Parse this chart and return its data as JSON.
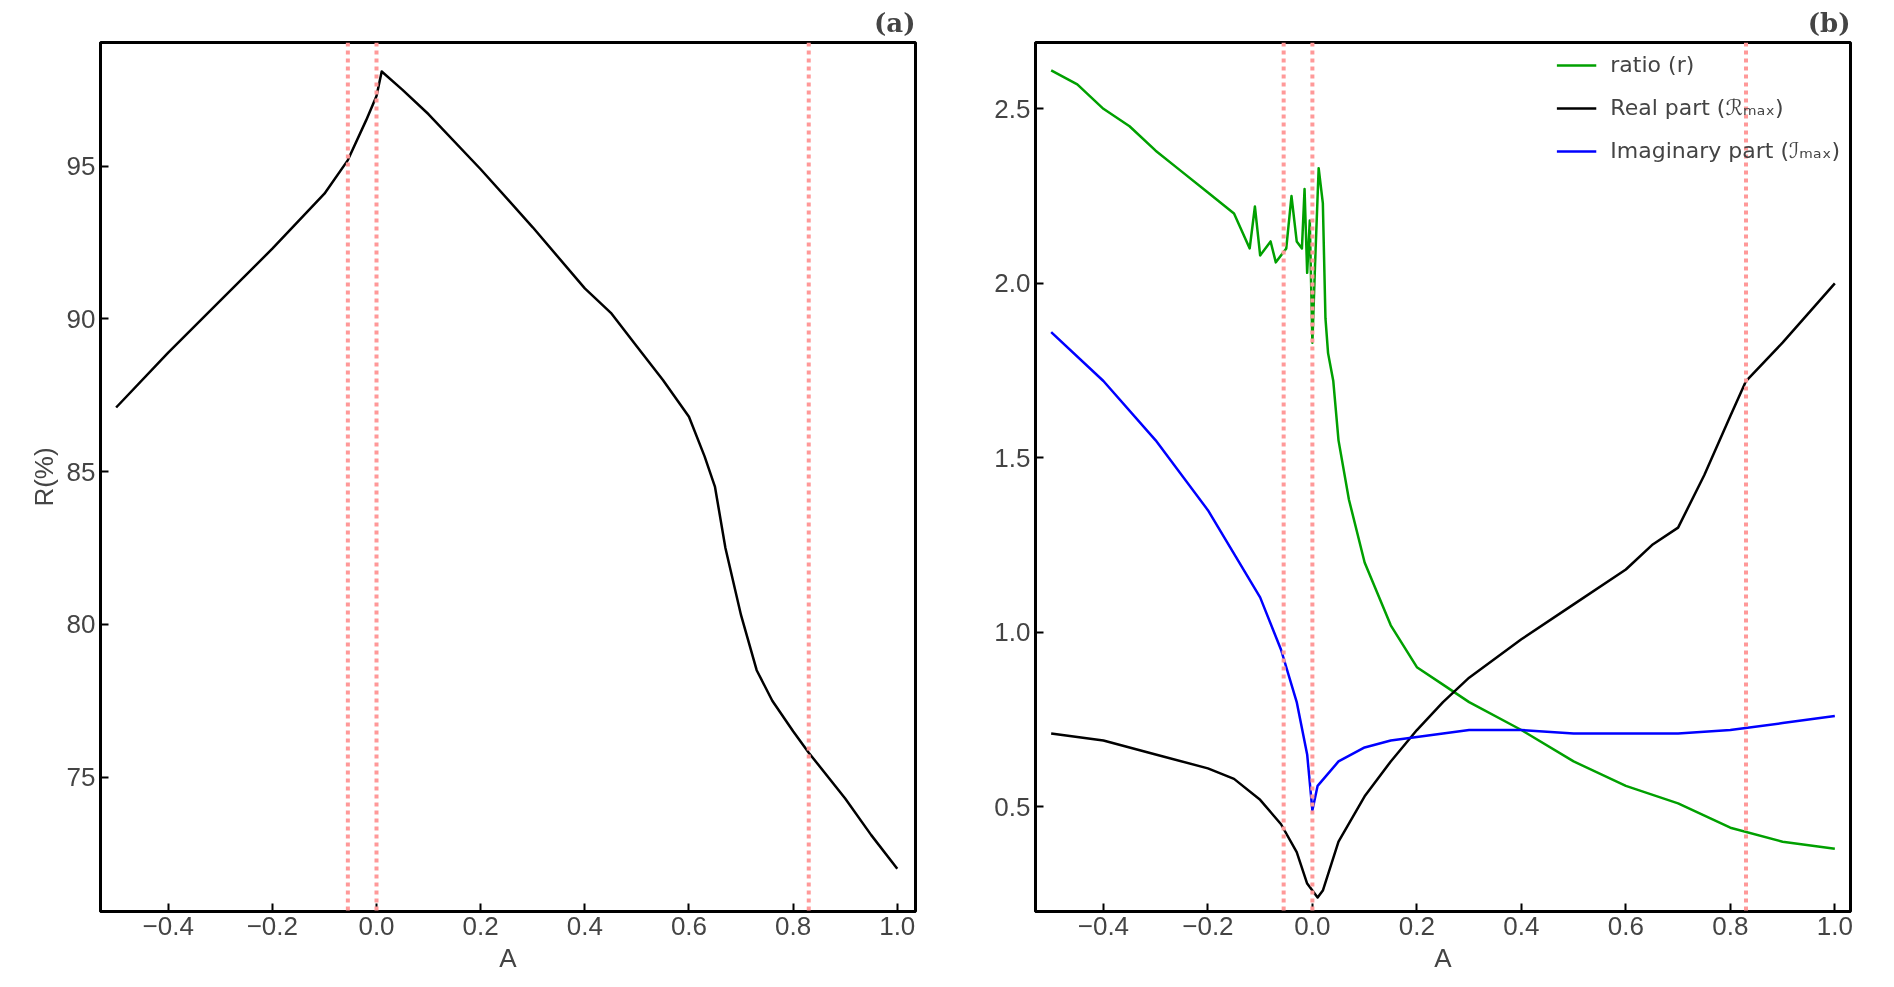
{
  "chart_data": [
    {
      "type": "line",
      "title": "(a)",
      "xlabel": "A",
      "ylabel": "R(%)",
      "xlim": [
        -0.53,
        1.035
      ],
      "ylim": [
        70.6,
        99.05
      ],
      "xticks": [
        {
          "value": -0.4,
          "label": "−0.4"
        },
        {
          "value": -0.2,
          "label": "−0.2"
        },
        {
          "value": 0,
          "label": "0.0"
        },
        {
          "value": 0.2,
          "label": "0.2"
        },
        {
          "value": 0.4,
          "label": "0.4"
        },
        {
          "value": 0.6,
          "label": "0.6"
        },
        {
          "value": 0.8,
          "label": "0.8"
        },
        {
          "value": 1.0,
          "label": "1.0"
        }
      ],
      "yticks": [
        75,
        80,
        85,
        90,
        95
      ],
      "grid": false,
      "legend": false,
      "line_style": "solid",
      "marker": "none",
      "series": [
        {
          "color": "#000000",
          "x": [
            -0.5,
            -0.4,
            -0.3,
            -0.2,
            -0.1,
            -0.055,
            -0.02,
            0.0,
            0.01,
            0.05,
            0.1,
            0.2,
            0.3,
            0.4,
            0.45,
            0.5,
            0.55,
            0.6,
            0.63,
            0.65,
            0.67,
            0.7,
            0.73,
            0.76,
            0.8,
            0.83,
            0.9,
            0.95,
            1.0
          ],
          "values": [
            87.1,
            88.9,
            90.6,
            92.3,
            94.1,
            95.2,
            96.5,
            97.3,
            98.1,
            97.5,
            96.7,
            94.9,
            93.0,
            91.0,
            90.2,
            89.1,
            88.0,
            86.8,
            85.5,
            84.5,
            82.5,
            80.3,
            78.5,
            77.5,
            76.5,
            75.8,
            74.3,
            73.1,
            72.0
          ]
        }
      ],
      "ref_lines": [
        {
          "axis": "x",
          "value": -0.055,
          "color": "#ff9999",
          "line_style": "dotted"
        },
        {
          "axis": "x",
          "value": 0.0,
          "color": "#ff9999",
          "line_style": "dotted"
        },
        {
          "axis": "x",
          "value": 0.83,
          "color": "#ff9999",
          "line_style": "dotted"
        }
      ]
    },
    {
      "type": "line",
      "title": "(b)",
      "xlabel": "A",
      "xlim": [
        -0.53,
        1.03
      ],
      "ylim": [
        0.2,
        2.69
      ],
      "xticks": [
        {
          "value": -0.4,
          "label": "−0.4"
        },
        {
          "value": -0.2,
          "label": "−0.2"
        },
        {
          "value": 0,
          "label": "0.0"
        },
        {
          "value": 0.2,
          "label": "0.2"
        },
        {
          "value": 0.4,
          "label": "0.4"
        },
        {
          "value": 0.6,
          "label": "0.6"
        },
        {
          "value": 0.8,
          "label": "0.8"
        },
        {
          "value": 1.0,
          "label": "1.0"
        }
      ],
      "yticks": [
        0.5,
        {
          "value": 1.0,
          "label": "1.0"
        },
        1.5,
        {
          "value": 2.0,
          "label": "2.0"
        },
        2.5
      ],
      "grid": false,
      "legend": "top right",
      "line_style": "solid",
      "marker": "none",
      "series": [
        {
          "name": "ratio (r)",
          "color": "#00a000",
          "x": [
            -0.5,
            -0.45,
            -0.4,
            -0.35,
            -0.3,
            -0.25,
            -0.2,
            -0.15,
            -0.12,
            -0.11,
            -0.1,
            -0.08,
            -0.07,
            -0.05,
            -0.04,
            -0.03,
            -0.02,
            -0.015,
            -0.01,
            -0.005,
            0.0,
            0.005,
            0.012,
            0.02,
            0.025,
            0.03,
            0.04,
            0.05,
            0.07,
            0.1,
            0.15,
            0.2,
            0.25,
            0.3,
            0.4,
            0.5,
            0.6,
            0.7,
            0.8,
            0.9,
            1.0
          ],
          "values": [
            2.61,
            2.57,
            2.5,
            2.45,
            2.38,
            2.32,
            2.26,
            2.2,
            2.1,
            2.22,
            2.08,
            2.12,
            2.06,
            2.1,
            2.25,
            2.12,
            2.1,
            2.27,
            2.03,
            2.18,
            1.83,
            2.05,
            2.33,
            2.23,
            1.9,
            1.8,
            1.72,
            1.55,
            1.38,
            1.2,
            1.02,
            0.9,
            0.85,
            0.8,
            0.72,
            0.63,
            0.56,
            0.51,
            0.44,
            0.4,
            0.38
          ]
        },
        {
          "name": "Real part (ℛₘₐₓ)",
          "color": "#000000",
          "x": [
            -0.5,
            -0.4,
            -0.3,
            -0.2,
            -0.15,
            -0.1,
            -0.06,
            -0.03,
            -0.01,
            0.01,
            0.02,
            0.05,
            0.1,
            0.15,
            0.2,
            0.25,
            0.3,
            0.4,
            0.5,
            0.6,
            0.65,
            0.7,
            0.75,
            0.8,
            0.83,
            0.9,
            1.0
          ],
          "values": [
            0.71,
            0.69,
            0.65,
            0.61,
            0.58,
            0.52,
            0.45,
            0.37,
            0.28,
            0.24,
            0.26,
            0.4,
            0.53,
            0.63,
            0.72,
            0.8,
            0.87,
            0.98,
            1.08,
            1.18,
            1.25,
            1.3,
            1.45,
            1.62,
            1.72,
            1.83,
            2.0
          ]
        },
        {
          "name": "Imaginary part (ℐₘₐₓ)",
          "color": "#0000ff",
          "x": [
            -0.5,
            -0.4,
            -0.3,
            -0.2,
            -0.1,
            -0.06,
            -0.03,
            -0.01,
            0.0,
            0.01,
            0.05,
            0.1,
            0.15,
            0.2,
            0.3,
            0.4,
            0.5,
            0.6,
            0.7,
            0.8,
            0.9,
            1.0
          ],
          "values": [
            1.86,
            1.72,
            1.55,
            1.35,
            1.1,
            0.95,
            0.8,
            0.65,
            0.49,
            0.56,
            0.63,
            0.67,
            0.69,
            0.7,
            0.72,
            0.72,
            0.71,
            0.71,
            0.71,
            0.72,
            0.74,
            0.76
          ]
        }
      ],
      "ref_lines": [
        {
          "axis": "x",
          "value": -0.055,
          "color": "#ff9999",
          "line_style": "dotted"
        },
        {
          "axis": "x",
          "value": 0.0,
          "color": "#ff9999",
          "line_style": "dotted"
        },
        {
          "axis": "x",
          "value": 0.83,
          "color": "#ff9999",
          "line_style": "dotted"
        }
      ]
    }
  ]
}
